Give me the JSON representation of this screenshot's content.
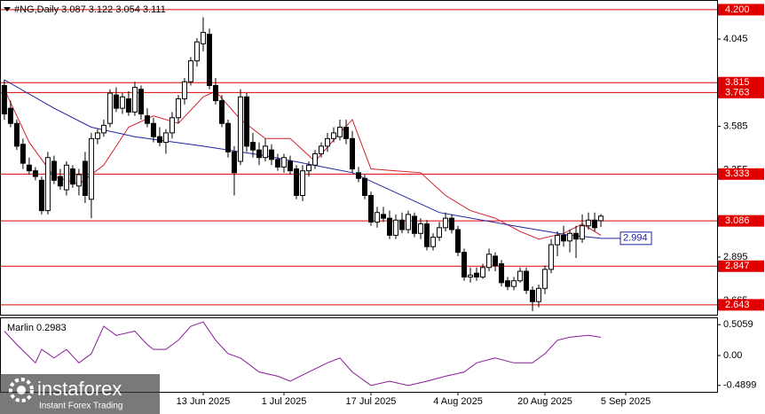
{
  "chart_data": [
    {
      "type": "candlestick",
      "title": "#NG,Daily 3.087 3.122 3.054 3.111",
      "open": [
        3.8,
        3.68,
        3.6,
        3.49,
        3.38,
        3.35,
        3.3,
        3.14,
        3.4,
        3.32,
        3.25,
        3.36,
        3.27,
        3.4,
        3.2,
        3.52,
        3.55,
        3.6,
        3.75,
        3.68,
        3.73,
        3.66,
        3.78,
        3.64,
        3.6,
        3.53,
        3.5,
        3.55,
        3.63,
        3.73,
        3.82,
        3.93,
        4.02,
        4.07,
        3.8,
        3.72,
        3.6,
        3.45,
        3.4,
        3.74,
        3.5,
        3.46,
        3.42,
        3.46,
        3.41,
        3.37,
        3.4,
        3.36,
        3.22,
        3.35,
        3.38,
        3.44,
        3.48,
        3.52,
        3.53,
        3.58,
        3.52,
        3.34,
        3.31,
        3.22,
        3.08,
        3.12,
        3.1,
        3.01,
        3.09,
        3.04,
        3.11,
        3.02,
        3.07,
        2.95,
        3.0,
        3.05,
        3.1,
        3.04,
        2.92,
        2.79,
        2.81,
        2.79,
        2.84,
        2.9,
        2.86,
        2.77,
        2.74,
        2.77,
        2.82,
        2.72,
        2.66,
        2.73,
        2.83,
        2.96,
        3.01,
        2.98,
        3.02,
        2.99,
        3.06,
        3.09,
        3.087
      ],
      "high": [
        3.83,
        3.72,
        3.62,
        3.52,
        3.42,
        3.37,
        3.32,
        3.45,
        3.43,
        3.36,
        3.4,
        3.38,
        3.36,
        3.45,
        3.55,
        3.57,
        3.62,
        3.78,
        3.79,
        3.76,
        3.77,
        3.82,
        3.8,
        3.68,
        3.63,
        3.58,
        3.57,
        3.66,
        3.75,
        3.84,
        3.95,
        4.05,
        4.16,
        4.1,
        3.84,
        3.75,
        3.62,
        3.48,
        3.78,
        3.76,
        3.55,
        3.5,
        3.52,
        3.49,
        3.44,
        3.44,
        3.43,
        3.38,
        3.38,
        3.4,
        3.46,
        3.5,
        3.55,
        3.58,
        3.62,
        3.62,
        3.56,
        3.37,
        3.33,
        3.24,
        3.16,
        3.16,
        3.14,
        3.12,
        3.13,
        3.14,
        3.13,
        3.1,
        3.09,
        3.02,
        3.08,
        3.13,
        3.12,
        3.06,
        2.94,
        2.84,
        2.84,
        2.86,
        2.94,
        2.92,
        2.88,
        2.79,
        2.79,
        2.84,
        2.84,
        2.74,
        2.75,
        2.85,
        2.99,
        3.03,
        3.06,
        3.04,
        3.06,
        3.12,
        3.13,
        3.13,
        3.122
      ],
      "low": [
        3.62,
        3.58,
        3.46,
        3.36,
        3.33,
        3.3,
        3.12,
        3.12,
        3.28,
        3.25,
        3.22,
        3.26,
        3.22,
        3.18,
        3.1,
        3.49,
        3.53,
        3.58,
        3.66,
        3.65,
        3.64,
        3.64,
        3.62,
        3.58,
        3.5,
        3.48,
        3.44,
        3.52,
        3.6,
        3.7,
        3.8,
        3.9,
        3.98,
        3.78,
        3.7,
        3.58,
        3.42,
        3.22,
        3.38,
        3.45,
        3.42,
        3.38,
        3.4,
        3.38,
        3.35,
        3.34,
        3.33,
        3.2,
        3.19,
        3.32,
        3.36,
        3.42,
        3.45,
        3.5,
        3.51,
        3.49,
        3.34,
        3.29,
        3.2,
        3.06,
        3.05,
        3.08,
        2.99,
        2.99,
        3.02,
        3.02,
        3.0,
        2.99,
        2.93,
        2.93,
        2.98,
        3.03,
        3.02,
        2.9,
        2.77,
        2.76,
        2.77,
        2.78,
        2.82,
        2.82,
        2.74,
        2.72,
        2.72,
        2.76,
        2.7,
        2.61,
        2.63,
        2.7,
        2.81,
        2.9,
        2.95,
        2.92,
        2.89,
        2.97,
        3.04,
        3.03,
        3.054
      ],
      "close": [
        3.65,
        3.6,
        3.48,
        3.39,
        3.35,
        3.32,
        3.14,
        3.42,
        3.3,
        3.27,
        3.38,
        3.28,
        3.33,
        3.22,
        3.52,
        3.55,
        3.59,
        3.76,
        3.68,
        3.74,
        3.66,
        3.79,
        3.65,
        3.6,
        3.53,
        3.5,
        3.55,
        3.63,
        3.73,
        3.82,
        3.93,
        4.03,
        4.08,
        3.8,
        3.72,
        3.6,
        3.45,
        3.34,
        3.74,
        3.48,
        3.46,
        3.42,
        3.48,
        3.41,
        3.37,
        3.42,
        3.35,
        3.22,
        3.35,
        3.38,
        3.44,
        3.48,
        3.52,
        3.55,
        3.58,
        3.52,
        3.36,
        3.31,
        3.22,
        3.08,
        3.13,
        3.1,
        3.01,
        3.09,
        3.04,
        3.12,
        3.02,
        3.07,
        2.95,
        3.0,
        3.05,
        3.1,
        3.04,
        2.92,
        2.79,
        2.8,
        2.79,
        2.84,
        2.91,
        2.85,
        2.76,
        2.74,
        2.77,
        2.82,
        2.72,
        2.66,
        2.73,
        2.83,
        2.96,
        3.01,
        2.98,
        3.02,
        2.99,
        3.06,
        3.09,
        3.05,
        3.111
      ],
      "bull_color": "#ffffff",
      "bear_color": "#000000",
      "overlays": [
        {
          "color": "#d0202e",
          "x": [
            0,
            4,
            8,
            12,
            16,
            20,
            24,
            28,
            32,
            34,
            38,
            42,
            46,
            50,
            54,
            56,
            59,
            63,
            67,
            71,
            75,
            79,
            83,
            86,
            90,
            93,
            96
          ],
          "values": [
            3.78,
            3.5,
            3.32,
            3.28,
            3.38,
            3.58,
            3.64,
            3.6,
            3.74,
            3.77,
            3.62,
            3.52,
            3.52,
            3.4,
            3.55,
            3.62,
            3.36,
            3.35,
            3.34,
            3.22,
            3.14,
            3.1,
            3.03,
            2.99,
            3.02,
            3.07,
            3.01
          ]
        },
        {
          "color": "#1e22a0",
          "x": [
            0,
            8,
            14,
            21,
            32,
            42,
            56,
            70,
            82,
            91,
            96
          ],
          "values": [
            3.83,
            3.68,
            3.58,
            3.53,
            3.48,
            3.43,
            3.34,
            3.13,
            3.06,
            3.01,
            2.994
          ]
        }
      ],
      "price_marker": {
        "value": 2.994,
        "color": "#1e22a0"
      },
      "levels": [
        {
          "value": 4.2,
          "label": "4.200"
        },
        3.815,
        3.763,
        3.333,
        3.086,
        2.847,
        2.643
      ],
      "level_color": "#e00000",
      "ylim": [
        2.591,
        4.251
      ],
      "yticks": [
        4.045,
        3.585,
        3.355,
        2.895,
        2.665
      ],
      "xlim": [
        -0.7,
        114.7
      ]
    },
    {
      "type": "line",
      "title": "Marlin 0.2983",
      "color": "#8a1a9a",
      "x": [
        0,
        2,
        5,
        6,
        8,
        10,
        12,
        14,
        16,
        18,
        21,
        23,
        24,
        26,
        28,
        30,
        32,
        34,
        36,
        38,
        41,
        44,
        46,
        49,
        52,
        54,
        56,
        59,
        62,
        65,
        68,
        71,
        74,
        76,
        79,
        82,
        85,
        87,
        89,
        91,
        94,
        96
      ],
      "values": [
        0.4,
        0.18,
        -0.12,
        0.1,
        -0.04,
        0.1,
        -0.12,
        0.03,
        0.48,
        0.33,
        0.4,
        0.18,
        0.1,
        0.1,
        0.25,
        0.48,
        0.55,
        0.25,
        0.03,
        -0.04,
        -0.27,
        -0.34,
        -0.42,
        -0.27,
        -0.12,
        -0.04,
        -0.27,
        -0.49,
        -0.42,
        -0.49,
        -0.42,
        -0.34,
        -0.27,
        -0.12,
        -0.04,
        -0.12,
        -0.12,
        0.03,
        0.25,
        0.3,
        0.33,
        0.2983
      ],
      "ylim": [
        -0.595,
        0.625
      ],
      "yticks": [
        0.5059,
        {
          "value": 0,
          "label": "0.00"
        },
        -0.4899
      ],
      "xlim": [
        -0.7,
        114.7
      ],
      "xticks": [
        {
          "value": 32,
          "label": "13 Jun 2025"
        },
        {
          "value": 45,
          "label": "1 Jul 2025"
        },
        {
          "value": 59,
          "label": "17 Jul 2025"
        },
        {
          "value": 73,
          "label": "4 Aug 2025"
        },
        {
          "value": 87,
          "label": "20 Aug 2025"
        },
        {
          "value": 100,
          "label": "5 Sep 2025"
        }
      ]
    }
  ],
  "watermark": {
    "brand": "instaforex",
    "tagline": "Instant Forex Trading"
  }
}
